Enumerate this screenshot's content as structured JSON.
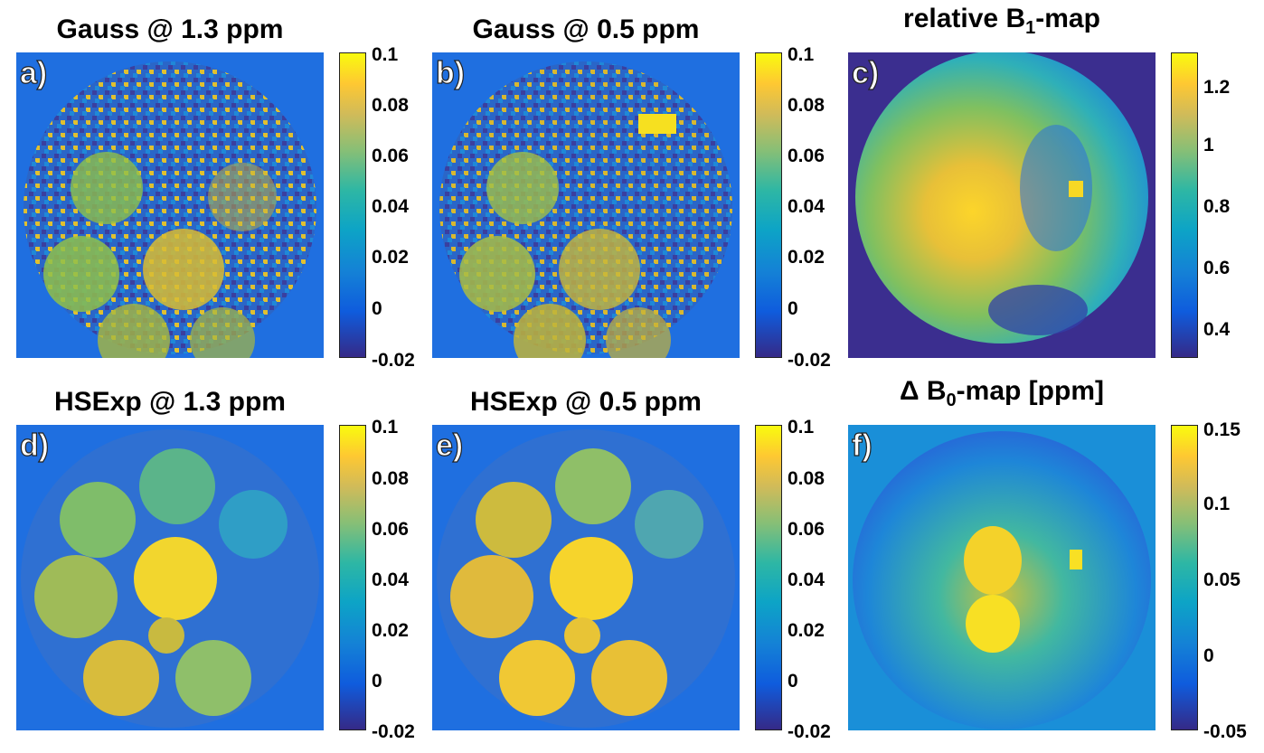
{
  "panels": [
    {
      "id": "a",
      "label": "a)",
      "title": "Gauss @ 1.3 ppm",
      "colorbar": {
        "ticks": [
          "0.1",
          "0.08",
          "0.06",
          "0.04",
          "0.02",
          "0",
          "-0.02"
        ]
      }
    },
    {
      "id": "b",
      "label": "b)",
      "title": "Gauss @ 0.5 ppm",
      "colorbar": {
        "ticks": [
          "0.1",
          "0.08",
          "0.06",
          "0.04",
          "0.02",
          "0",
          "-0.02"
        ]
      }
    },
    {
      "id": "c",
      "label": "c)",
      "title_main": "relative B",
      "title_sub": "1",
      "title_tail": "-map",
      "colorbar": {
        "ticks": [
          "1.2",
          "1",
          "0.8",
          "0.6",
          "0.4"
        ]
      }
    },
    {
      "id": "d",
      "label": "d)",
      "title": "HSExp @ 1.3 ppm",
      "colorbar": {
        "ticks": [
          "0.1",
          "0.08",
          "0.06",
          "0.04",
          "0.02",
          "0",
          "-0.02"
        ]
      }
    },
    {
      "id": "e",
      "label": "e)",
      "title": "HSExp @ 0.5 ppm",
      "colorbar": {
        "ticks": [
          "0.1",
          "0.08",
          "0.06",
          "0.04",
          "0.02",
          "0",
          "-0.02"
        ]
      }
    },
    {
      "id": "f",
      "label": "f)",
      "title_main": "Δ B",
      "title_sub": "0",
      "title_tail": "-map [ppm]",
      "colorbar": {
        "ticks": [
          "0.15",
          "0.1",
          "0.05",
          "0",
          "-0.05"
        ]
      }
    }
  ],
  "colors": {
    "background_blue": "#1f6fe0",
    "parula_low": "#352a87",
    "parula_mid": "#13b3b4",
    "parula_high": "#f9fb0e"
  }
}
